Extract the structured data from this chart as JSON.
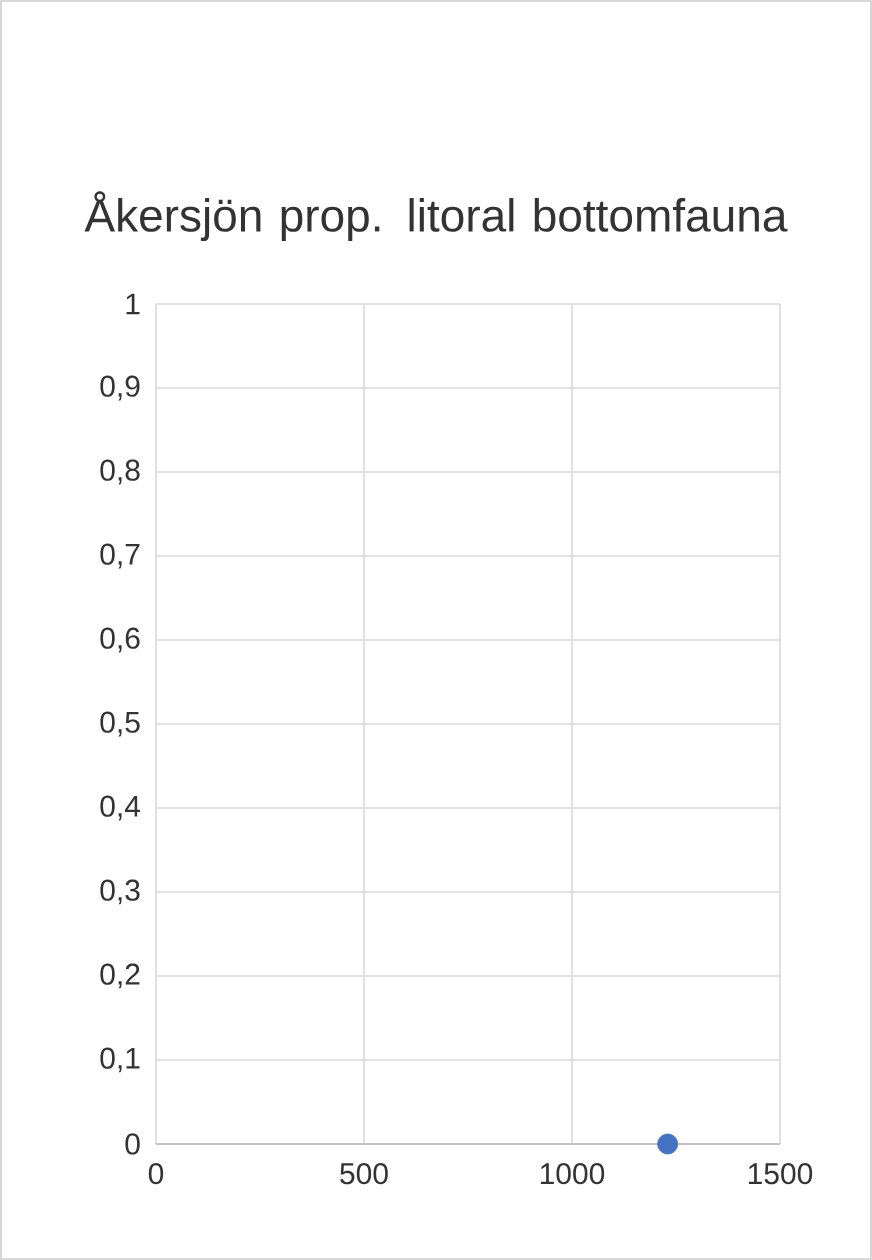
{
  "chart_data": {
    "type": "scatter",
    "title": "Åkersjön prop. litoral bottomfauna",
    "x": [
      1230
    ],
    "values": [
      0
    ],
    "color": "#4472c4",
    "marker": "circle",
    "xlim": [
      0,
      1500
    ],
    "xticks": [
      0,
      500,
      1000,
      1500
    ],
    "ylim": [
      0,
      1
    ],
    "yticks": [
      0,
      {
        "value": 0.1,
        "label": "0,1"
      },
      {
        "value": 0.2,
        "label": "0,2"
      },
      {
        "value": 0.3,
        "label": "0,3"
      },
      {
        "value": 0.4,
        "label": "0,4"
      },
      {
        "value": 0.5,
        "label": "0,5"
      },
      {
        "value": 0.6,
        "label": "0,6"
      },
      {
        "value": 0.7,
        "label": "0,7"
      },
      {
        "value": 0.8,
        "label": "0,8"
      },
      {
        "value": 0.9,
        "label": "0,9"
      },
      1
    ],
    "grid": true
  }
}
